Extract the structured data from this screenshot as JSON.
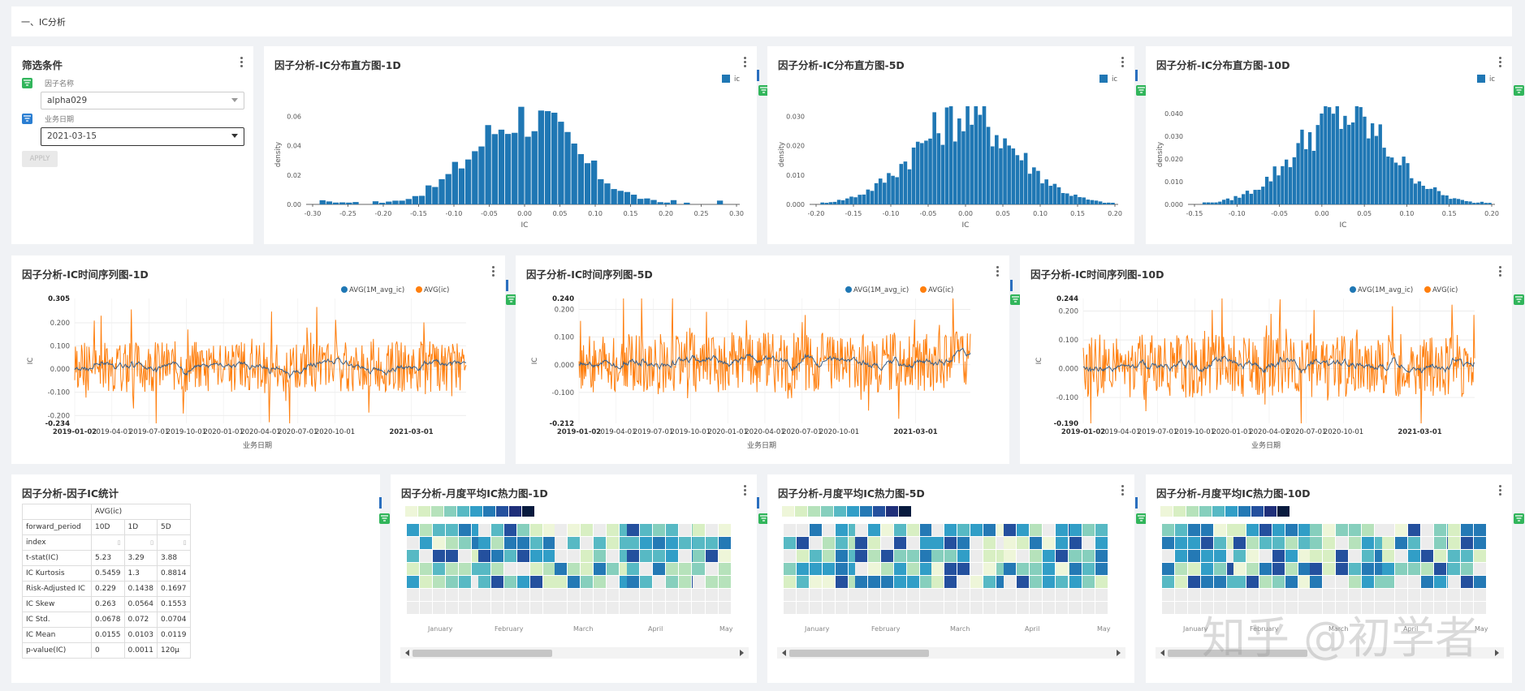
{
  "section_title": "一、IC分析",
  "filter": {
    "title": "筛选条件",
    "factor_label": "因子名称",
    "factor_value": "alpha029",
    "date_label": "业务日期",
    "date_value": "2021-03-15",
    "apply_label": "APPLY"
  },
  "histograms": [
    {
      "title": "因子分析-IC分布直方图-1D",
      "legend": "ic",
      "xlabel": "IC",
      "ylabel": "density",
      "xticks": [
        "-0.30",
        "-0.25",
        "-0.20",
        "-0.15",
        "-0.10",
        "-0.05",
        "0.00",
        "0.05",
        "0.10",
        "0.15",
        "0.20",
        "0.25",
        "0.30"
      ],
      "yticks": [
        "0.00",
        "0.02",
        "0.04",
        "0.06"
      ]
    },
    {
      "title": "因子分析-IC分布直方图-5D",
      "legend": "ic",
      "xlabel": "IC",
      "ylabel": "density",
      "xticks": [
        "-0.20",
        "-0.15",
        "-0.10",
        "-0.05",
        "0.00",
        "0.05",
        "0.10",
        "0.15",
        "0.20"
      ],
      "yticks": [
        "0.000",
        "0.010",
        "0.020",
        "0.030"
      ]
    },
    {
      "title": "因子分析-IC分布直方图-10D",
      "legend": "ic",
      "xlabel": "IC",
      "ylabel": "density",
      "xticks": [
        "-0.15",
        "-0.10",
        "-0.05",
        "0.00",
        "0.05",
        "0.10",
        "0.15",
        "0.20"
      ],
      "yticks": [
        "0.000",
        "0.010",
        "0.020",
        "0.030",
        "0.040"
      ]
    }
  ],
  "timeseries": [
    {
      "title": "因子分析-IC时间序列图-1D",
      "legend": [
        "AVG(1M_avg_ic)",
        "AVG(ic)"
      ],
      "xlabel": "业务日期",
      "ylabel": "IC",
      "ymax": "0.305",
      "ymin": "-0.234",
      "yticks": [
        "0.200",
        "0.100",
        "0.000",
        "-0.100",
        "-0.200"
      ],
      "xticks": [
        "2019-01-02",
        "2019-04-01",
        "2019-07-01",
        "2019-10-01",
        "2020-01-01",
        "2020-04-01",
        "2020-07-01",
        "2020-10-01",
        "2021-03-01"
      ]
    },
    {
      "title": "因子分析-IC时间序列图-5D",
      "legend": [
        "AVG(1M_avg_ic)",
        "AVG(ic)"
      ],
      "xlabel": "业务日期",
      "ylabel": "IC",
      "ymax": "0.240",
      "ymin": "-0.212",
      "yticks": [
        "0.200",
        "0.100",
        "0.000",
        "-0.100"
      ],
      "xticks": [
        "2019-01-02",
        "2019-04-01",
        "2019-07-01",
        "2019-10-01",
        "2020-01-01",
        "2020-04-01",
        "2020-07-01",
        "2020-10-01",
        "2021-03-01"
      ]
    },
    {
      "title": "因子分析-IC时间序列图-10D",
      "legend": [
        "AVG(1M_avg_ic)",
        "AVG(ic)"
      ],
      "xlabel": "业务日期",
      "ylabel": "IC",
      "ymax": "0.244",
      "ymin": "-0.190",
      "yticks": [
        "0.200",
        "0.100",
        "0.000",
        "-0.100"
      ],
      "xticks": [
        "2019-01-02",
        "2019-04-01",
        "2019-07-01",
        "2019-10-01",
        "2020-01-01",
        "2020-04-01",
        "2020-07-01",
        "2020-10-01",
        "2021-03-01"
      ]
    }
  ],
  "stats": {
    "title": "因子分析-因子IC统计",
    "header_group": "AVG(ic)",
    "header_row": [
      "forward_period",
      "10D",
      "1D",
      "5D"
    ],
    "index_label": "index",
    "rows": [
      [
        "t-stat(IC)",
        "5.23",
        "3.29",
        "3.88"
      ],
      [
        "IC Kurtosis",
        "0.5459",
        "1.3",
        "0.8814"
      ],
      [
        "Risk-Adjusted IC",
        "0.229",
        "0.1438",
        "0.1697"
      ],
      [
        "IC Skew",
        "0.263",
        "0.0564",
        "0.1553"
      ],
      [
        "IC Std.",
        "0.0678",
        "0.072",
        "0.0704"
      ],
      [
        "IC Mean",
        "0.0155",
        "0.0103",
        "0.0119"
      ],
      [
        "p-value(IC)",
        "0",
        "0.0011",
        "120µ"
      ]
    ]
  },
  "heatmaps": [
    {
      "title": "因子分析-月度平均IC热力图-1D",
      "months": [
        "January",
        "February",
        "March",
        "April",
        "May"
      ]
    },
    {
      "title": "因子分析-月度平均IC热力图-5D",
      "months": [
        "January",
        "February",
        "March",
        "April",
        "May"
      ]
    },
    {
      "title": "因子分析-月度平均IC热力图-10D",
      "months": [
        "January",
        "February",
        "March",
        "April",
        "May"
      ]
    }
  ],
  "colors": {
    "bar": "#1f77b4",
    "line_avg": "#1f77b4",
    "line_ic": "#ff7f0e",
    "filter_green": "#31b55b",
    "heat_scale": [
      "#eef6d9",
      "#d8efc3",
      "#b6e2bb",
      "#86cfbd",
      "#57b9c4",
      "#319ec7",
      "#2479b5",
      "#24509e",
      "#1f2f7a",
      "#081a3e"
    ]
  },
  "watermark": "知乎 @初学者"
}
